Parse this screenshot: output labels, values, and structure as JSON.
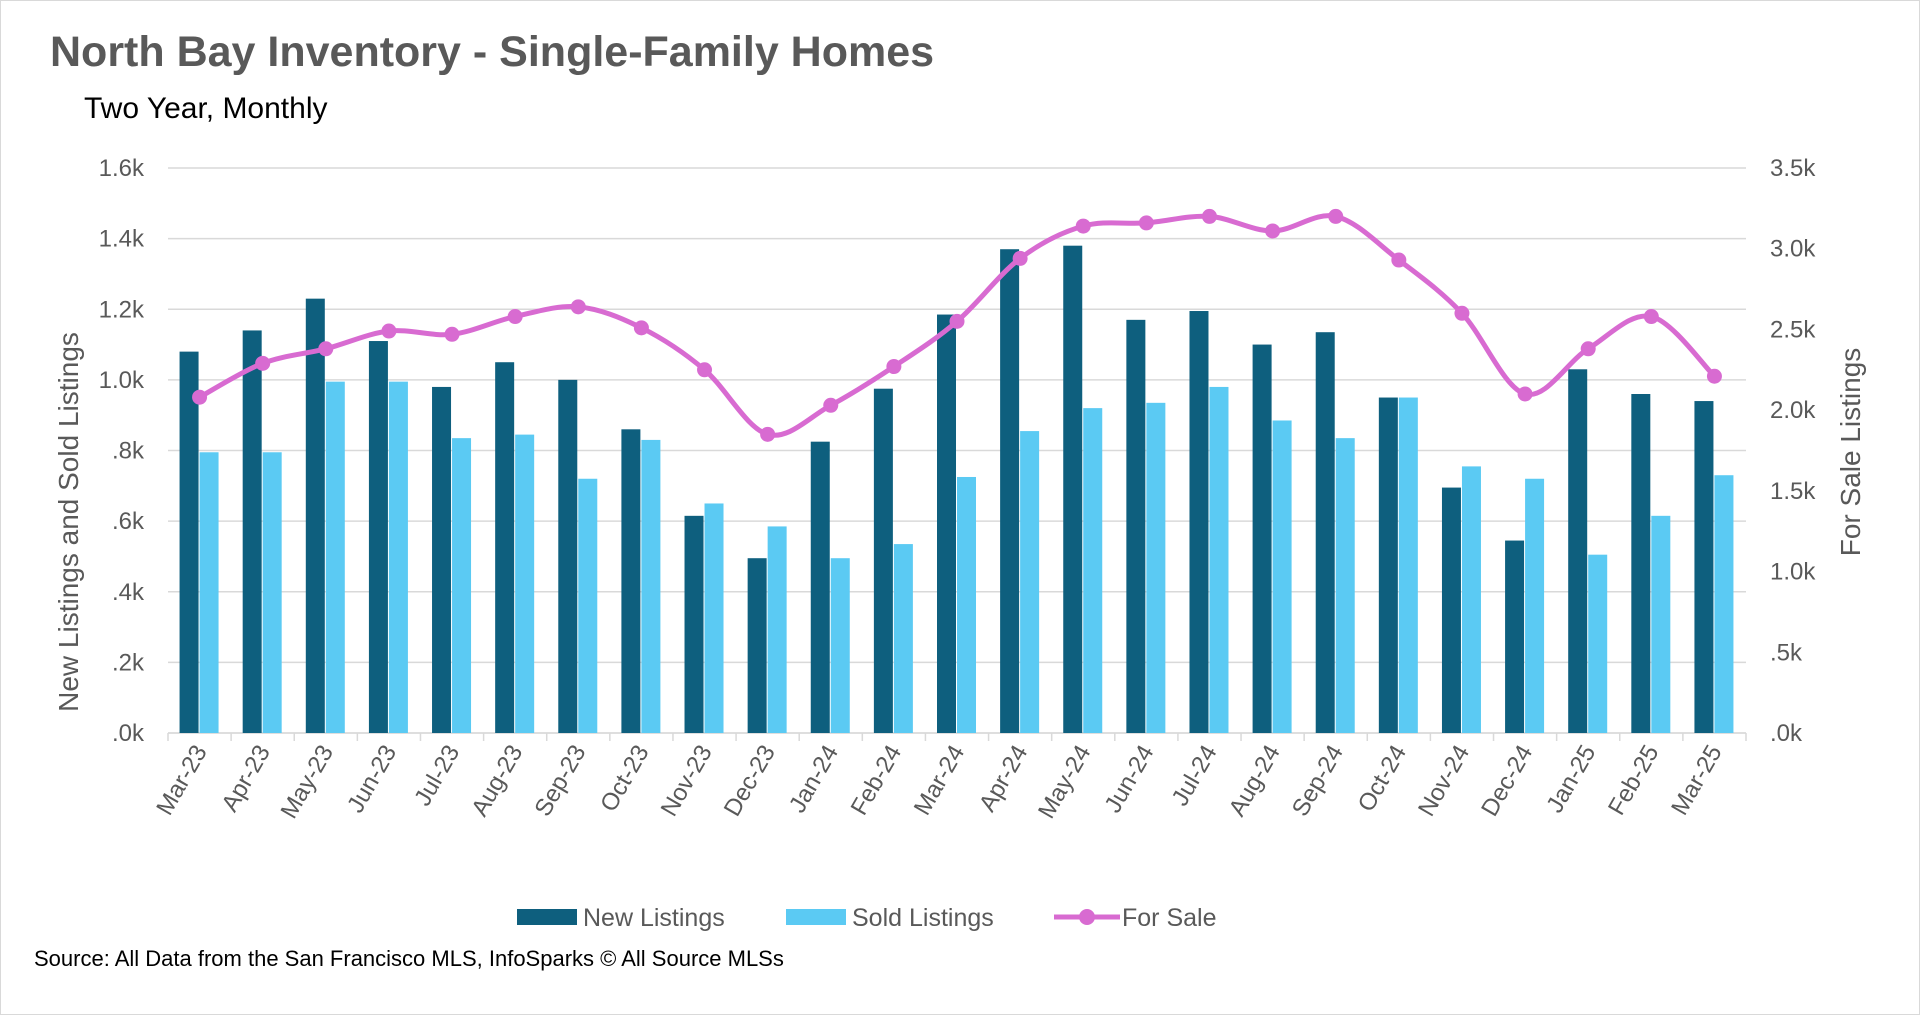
{
  "chart_data": {
    "type": "bar",
    "title": "North Bay Inventory - Single-Family Homes",
    "subtitle": "Two Year, Monthly",
    "source": "Source: All Data from the San Francisco MLS, InfoSparks © All Source MLSs",
    "ylabel": "New Listings and Sold Listings",
    "y2label": "For Sale Listings",
    "ylim": [
      0,
      1600
    ],
    "y2lim": [
      0,
      3500
    ],
    "yticks": [
      ".0k",
      ".2k",
      ".4k",
      ".6k",
      ".8k",
      "1.0k",
      "1.2k",
      "1.4k",
      "1.6k"
    ],
    "y2ticks": [
      ".0k",
      ".5k",
      "1.0k",
      "1.5k",
      "2.0k",
      "2.5k",
      "3.0k",
      "3.5k"
    ],
    "grid": true,
    "legend_position": "bottom",
    "categories": [
      "Mar-23",
      "Apr-23",
      "May-23",
      "Jun-23",
      "Jul-23",
      "Aug-23",
      "Sep-23",
      "Oct-23",
      "Nov-23",
      "Dec-23",
      "Jan-24",
      "Feb-24",
      "Mar-24",
      "Apr-24",
      "May-24",
      "Jun-24",
      "Jul-24",
      "Aug-24",
      "Sep-24",
      "Oct-24",
      "Nov-24",
      "Dec-24",
      "Jan-25",
      "Feb-25",
      "Mar-25"
    ],
    "series": [
      {
        "name": "New Listings",
        "kind": "bar",
        "axis": "left",
        "color": "#0e5f7e",
        "values": [
          1080,
          1140,
          1230,
          1110,
          980,
          1050,
          1000,
          860,
          615,
          495,
          825,
          975,
          1185,
          1370,
          1380,
          1170,
          1195,
          1100,
          1135,
          950,
          695,
          545,
          1030,
          960,
          940
        ]
      },
      {
        "name": "Sold Listings",
        "kind": "bar",
        "axis": "left",
        "color": "#5bcaf3",
        "values": [
          795,
          795,
          995,
          995,
          835,
          845,
          720,
          830,
          650,
          585,
          495,
          535,
          725,
          855,
          920,
          935,
          980,
          885,
          835,
          950,
          755,
          720,
          505,
          615,
          730
        ]
      },
      {
        "name": "For Sale",
        "kind": "line",
        "axis": "right",
        "color": "#d86bd1",
        "values": [
          2080,
          2290,
          2380,
          2490,
          2470,
          2580,
          2640,
          2510,
          2250,
          1850,
          2030,
          2270,
          2550,
          2940,
          3140,
          3160,
          3200,
          3110,
          3200,
          2930,
          2600,
          2100,
          2380,
          2580,
          2210
        ]
      }
    ]
  }
}
